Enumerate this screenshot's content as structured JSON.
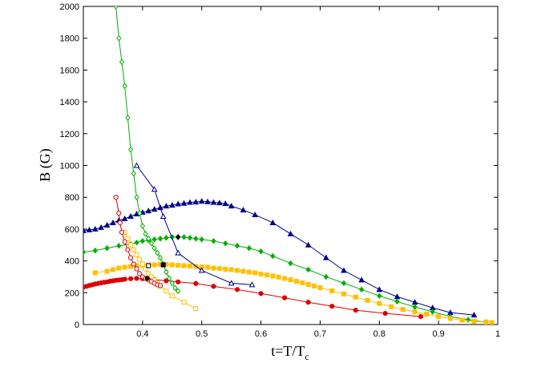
{
  "chart_data": {
    "type": "scatter",
    "title": "",
    "xlabel": "t=T/T",
    "xlabel_sub": "c",
    "ylabel": "B (G)",
    "xlim": [
      0.3,
      1.0
    ],
    "ylim": [
      0,
      2000
    ],
    "x_ticks": [
      0.4,
      0.5,
      0.6,
      0.7,
      0.8,
      0.9,
      1.0
    ],
    "x_tick_labels": [
      "0.4",
      "0.5",
      "0.6",
      "0.7",
      "0.8",
      "0.9",
      "1"
    ],
    "y_ticks": [
      0,
      200,
      400,
      600,
      800,
      1000,
      1200,
      1400,
      1600,
      1800,
      2000
    ],
    "y_tick_labels": [
      "0",
      "200",
      "400",
      "600",
      "800",
      "1000",
      "1200",
      "1400",
      "1600",
      "1800",
      "2000"
    ],
    "grid": false,
    "legend": "none",
    "series": [
      {
        "color": "#00008b",
        "marker": "triangle-filled",
        "x": [
          0.3,
          0.31,
          0.32,
          0.33,
          0.34,
          0.35,
          0.36,
          0.37,
          0.38,
          0.39,
          0.4,
          0.41,
          0.42,
          0.43,
          0.44,
          0.45,
          0.46,
          0.47,
          0.48,
          0.49,
          0.5,
          0.51,
          0.52,
          0.53,
          0.54,
          0.55,
          0.57,
          0.59,
          0.62,
          0.65,
          0.68,
          0.71,
          0.74,
          0.77,
          0.8,
          0.83,
          0.86,
          0.89,
          0.92,
          0.96
        ],
        "y": [
          590,
          595,
          600,
          610,
          625,
          640,
          655,
          665,
          680,
          695,
          705,
          715,
          725,
          735,
          745,
          750,
          758,
          762,
          768,
          770,
          775,
          772,
          768,
          765,
          760,
          745,
          720,
          690,
          640,
          570,
          500,
          420,
          340,
          280,
          220,
          175,
          140,
          105,
          75,
          60
        ]
      },
      {
        "color": "#00b000",
        "marker": "diamond-filled",
        "x": [
          0.3,
          0.32,
          0.34,
          0.36,
          0.38,
          0.39,
          0.4,
          0.41,
          0.42,
          0.43,
          0.44,
          0.45,
          0.46,
          0.47,
          0.48,
          0.49,
          0.5,
          0.52,
          0.54,
          0.56,
          0.58,
          0.6,
          0.62,
          0.65,
          0.68,
          0.71,
          0.74,
          0.77,
          0.8,
          0.83,
          0.86,
          0.89,
          0.92,
          0.95,
          0.98
        ],
        "y": [
          455,
          465,
          480,
          495,
          505,
          515,
          525,
          530,
          535,
          540,
          545,
          550,
          550,
          550,
          545,
          540,
          535,
          525,
          510,
          495,
          480,
          460,
          430,
          385,
          345,
          300,
          260,
          220,
          180,
          145,
          110,
          80,
          50,
          30,
          15
        ]
      },
      {
        "color": "#ffc000",
        "marker": "square-filled",
        "x": [
          0.32,
          0.34,
          0.35,
          0.36,
          0.37,
          0.38,
          0.39,
          0.4,
          0.41,
          0.42,
          0.43,
          0.44,
          0.45,
          0.46,
          0.47,
          0.48,
          0.49,
          0.5,
          0.51,
          0.52,
          0.53,
          0.54,
          0.55,
          0.56,
          0.57,
          0.58,
          0.59,
          0.6,
          0.61,
          0.62,
          0.63,
          0.64,
          0.65,
          0.66,
          0.67,
          0.68,
          0.69,
          0.7,
          0.72,
          0.74,
          0.76,
          0.78,
          0.8,
          0.82,
          0.84,
          0.86,
          0.88,
          0.9,
          0.92,
          0.94,
          0.96,
          0.98,
          0.99
        ],
        "y": [
          325,
          335,
          345,
          355,
          360,
          365,
          370,
          372,
          375,
          375,
          378,
          378,
          375,
          372,
          370,
          368,
          365,
          362,
          360,
          355,
          352,
          348,
          345,
          340,
          335,
          330,
          325,
          318,
          312,
          305,
          298,
          290,
          282,
          272,
          262,
          252,
          242,
          232,
          212,
          192,
          172,
          152,
          132,
          112,
          95,
          80,
          65,
          50,
          38,
          28,
          20,
          15,
          12
        ]
      },
      {
        "color": "#dd0000",
        "marker": "circle-filled",
        "x": [
          0.3,
          0.305,
          0.31,
          0.315,
          0.32,
          0.325,
          0.33,
          0.335,
          0.34,
          0.345,
          0.35,
          0.355,
          0.36,
          0.365,
          0.37,
          0.38,
          0.39,
          0.4,
          0.42,
          0.44,
          0.46,
          0.49,
          0.52,
          0.56,
          0.6,
          0.64,
          0.68,
          0.72,
          0.76,
          0.81,
          0.87
        ],
        "y": [
          235,
          240,
          245,
          250,
          255,
          258,
          262,
          265,
          268,
          272,
          275,
          278,
          280,
          282,
          285,
          288,
          290,
          288,
          282,
          275,
          268,
          258,
          240,
          220,
          195,
          168,
          140,
          115,
          90,
          70,
          50
        ]
      },
      {
        "color": "#00b000",
        "marker": "diamond-open",
        "x": [
          0.355,
          0.36,
          0.365,
          0.37,
          0.375,
          0.38,
          0.385,
          0.39,
          0.395,
          0.4,
          0.405,
          0.41,
          0.415,
          0.42,
          0.425,
          0.43,
          0.435,
          0.44,
          0.445,
          0.45,
          0.455,
          0.46
        ],
        "y": [
          2000,
          1800,
          1650,
          1500,
          1300,
          1100,
          950,
          800,
          700,
          620,
          570,
          540,
          510,
          480,
          450,
          420,
          380,
          330,
          290,
          260,
          230,
          210
        ]
      },
      {
        "color": "#00008b",
        "marker": "triangle-open",
        "x": [
          0.39,
          0.42,
          0.435,
          0.46,
          0.5,
          0.55,
          0.585
        ],
        "y": [
          1000,
          850,
          680,
          450,
          340,
          260,
          250
        ]
      },
      {
        "color": "#ffc000",
        "marker": "square-open",
        "x": [
          0.37,
          0.375,
          0.38,
          0.385,
          0.39,
          0.395,
          0.4,
          0.405,
          0.41,
          0.415,
          0.42,
          0.425,
          0.43,
          0.44,
          0.45,
          0.47,
          0.49
        ],
        "y": [
          580,
          540,
          500,
          470,
          440,
          410,
          380,
          350,
          320,
          300,
          280,
          260,
          240,
          210,
          180,
          140,
          100
        ]
      },
      {
        "color": "#dd0000",
        "marker": "circle-open",
        "x": [
          0.355,
          0.36,
          0.362,
          0.365,
          0.37,
          0.375,
          0.38,
          0.385,
          0.39,
          0.395,
          0.4,
          0.405,
          0.41,
          0.415,
          0.42,
          0.425,
          0.43
        ],
        "y": [
          800,
          700,
          640,
          580,
          520,
          470,
          420,
          380,
          350,
          320,
          300,
          290,
          280,
          270,
          260,
          250,
          245
        ]
      },
      {
        "color": "#000000",
        "marker": "square-filled",
        "x": [
          0.435
        ],
        "y": [
          375
        ]
      },
      {
        "color": "#000000",
        "marker": "square-open",
        "x": [
          0.41
        ],
        "y": [
          370
        ]
      },
      {
        "color": "#000000",
        "marker": "circle-filled",
        "x": [
          0.408
        ],
        "y": [
          290
        ]
      },
      {
        "color": "#000000",
        "marker": "diamond-filled",
        "x": [
          0.46
        ],
        "y": [
          550
        ]
      }
    ]
  }
}
